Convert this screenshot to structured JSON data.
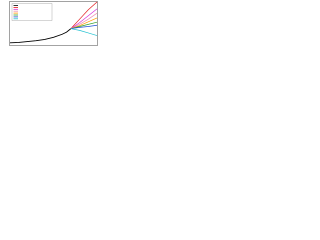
{
  "chart_data": {
    "type": "line",
    "x": [
      0,
      10,
      20,
      30,
      40,
      50,
      60,
      65,
      70,
      80,
      90,
      100
    ],
    "xlim": [
      0,
      100
    ],
    "ylim": [
      0,
      100
    ],
    "legend": "upper-left",
    "series": [
      {
        "color": "#000000",
        "values": [
          5,
          6,
          8,
          10,
          13,
          18,
          25,
          30,
          38,
          null,
          null,
          null
        ]
      },
      {
        "color": "#e41a1c",
        "values": [
          null,
          null,
          null,
          null,
          null,
          null,
          null,
          null,
          38,
          60,
          82,
          100
        ]
      },
      {
        "color": "#d62fd6",
        "values": [
          null,
          null,
          null,
          null,
          null,
          null,
          null,
          null,
          38,
          52,
          68,
          84
        ]
      },
      {
        "color": "#f08fb0",
        "values": [
          null,
          null,
          null,
          null,
          null,
          null,
          null,
          null,
          38,
          48,
          60,
          74
        ]
      },
      {
        "color": "#ff9900",
        "values": [
          null,
          null,
          null,
          null,
          null,
          null,
          null,
          null,
          38,
          45,
          54,
          63
        ]
      },
      {
        "color": "#33a02c",
        "values": [
          null,
          null,
          null,
          null,
          null,
          null,
          null,
          null,
          38,
          43,
          48,
          53
        ]
      },
      {
        "color": "#1f4fd6",
        "values": [
          null,
          null,
          null,
          null,
          null,
          null,
          null,
          null,
          38,
          41,
          43,
          46
        ]
      },
      {
        "color": "#20c0d0",
        "values": [
          null,
          null,
          null,
          null,
          null,
          null,
          null,
          null,
          38,
          34,
          28,
          22
        ]
      }
    ]
  }
}
